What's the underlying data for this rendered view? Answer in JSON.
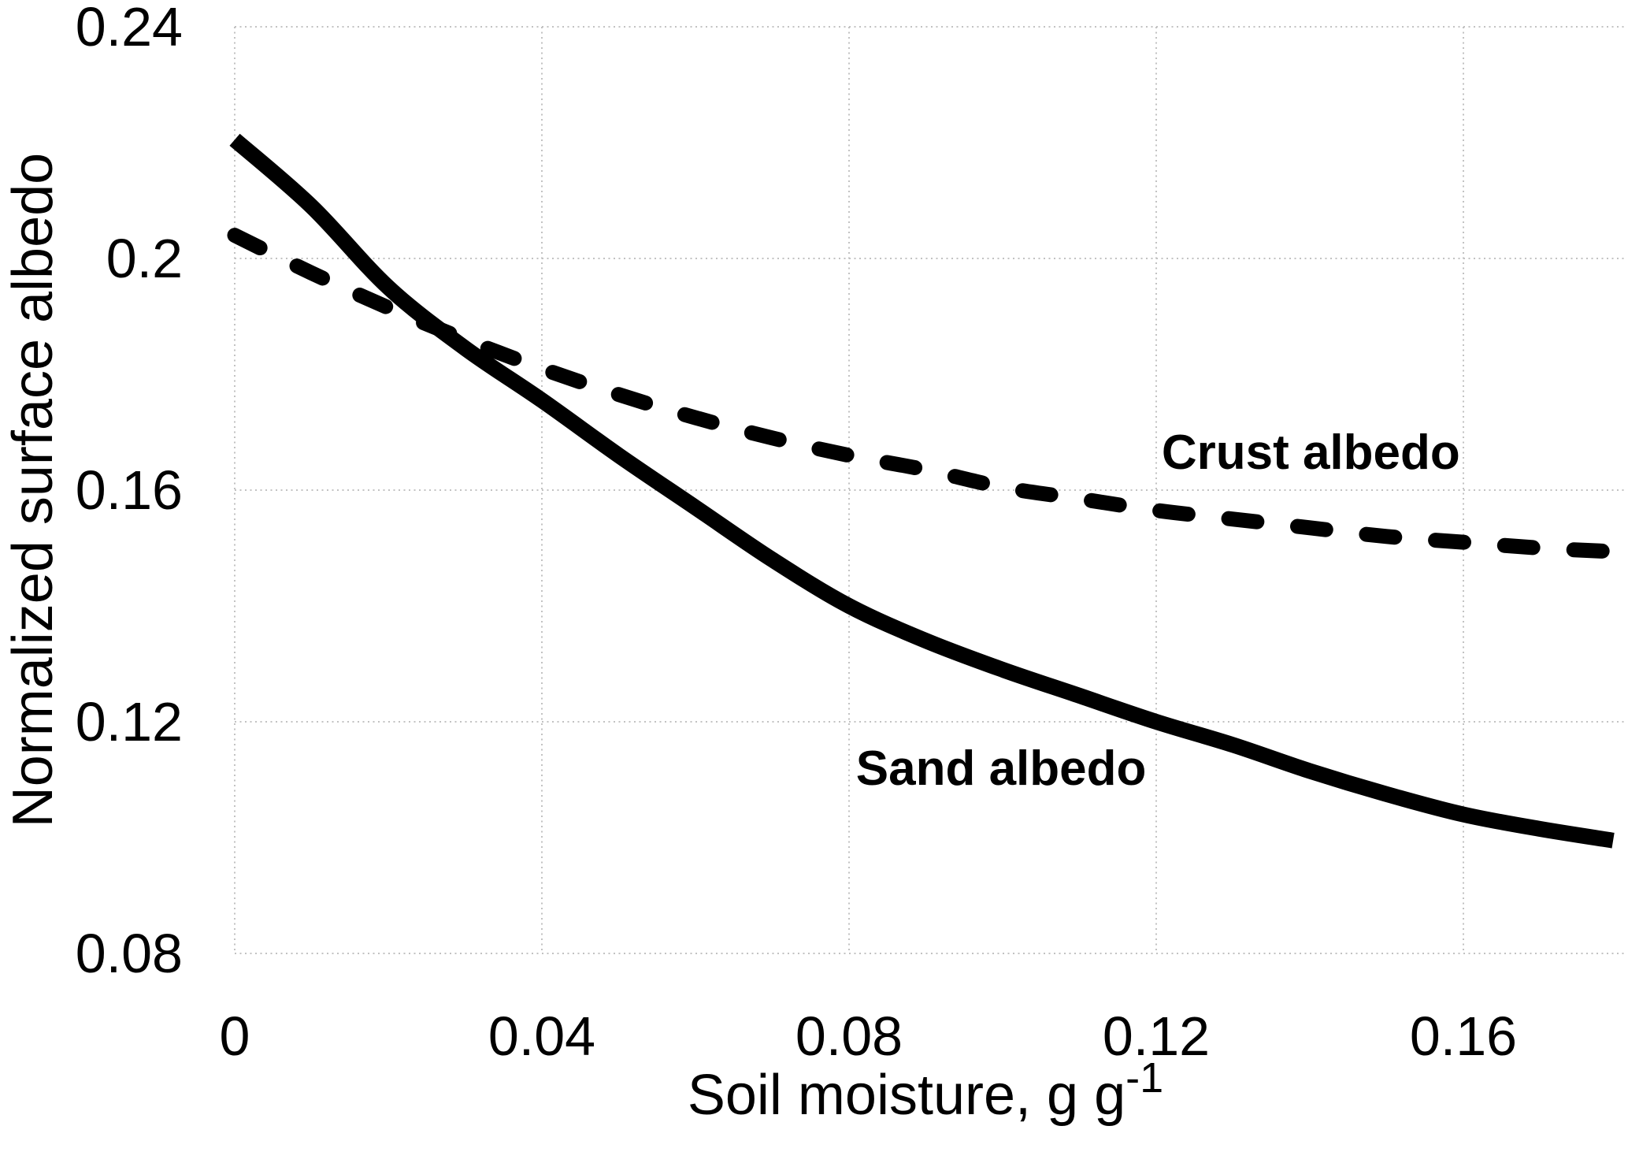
{
  "figure": {
    "background": "#ffffff"
  },
  "chart_data": {
    "type": "line",
    "title": "",
    "xlabel": "Soil moisture, g g",
    "xlabel_superscript": "-1",
    "ylabel": "Normalized surface albedo",
    "xlim": [
      0,
      0.18
    ],
    "ylim": [
      0.08,
      0.24
    ],
    "grid": true,
    "legend_position": "inline-annotations",
    "gridline_color": "#c2c2c2",
    "axis_text_color": "#000000",
    "x_ticks": {
      "values": [
        0,
        0.04,
        0.08,
        0.12,
        0.16
      ],
      "labels": [
        "0",
        "0.04",
        "0.08",
        "0.12",
        "0.16"
      ]
    },
    "y_ticks": {
      "values": [
        0.24,
        0.2,
        0.16,
        0.12,
        0.08
      ],
      "labels": [
        "0.24",
        "0.2",
        "0.16",
        "0.12",
        "0.08"
      ]
    },
    "series": [
      {
        "name": "Sand albedo",
        "style": "solid",
        "color": "#000000",
        "stroke_width": 20,
        "x": [
          0,
          0.01,
          0.02,
          0.03,
          0.04,
          0.05,
          0.06,
          0.07,
          0.08,
          0.09,
          0.1,
          0.11,
          0.12,
          0.13,
          0.14,
          0.15,
          0.16,
          0.17,
          0.1795
        ],
        "values": [
          0.2205,
          0.209,
          0.195,
          0.1845,
          0.1755,
          0.166,
          0.157,
          0.148,
          0.14,
          0.134,
          0.129,
          0.1245,
          0.12,
          0.116,
          0.1115,
          0.1075,
          0.104,
          0.1015,
          0.0995
        ]
      },
      {
        "name": "Crust albedo",
        "style": "dashed",
        "color": "#000000",
        "stroke_width": 19,
        "x": [
          0,
          0.01,
          0.02,
          0.03,
          0.04,
          0.05,
          0.06,
          0.07,
          0.08,
          0.09,
          0.1,
          0.11,
          0.12,
          0.13,
          0.14,
          0.15,
          0.16,
          0.17,
          0.181
        ],
        "values": [
          0.204,
          0.1975,
          0.1915,
          0.186,
          0.181,
          0.1765,
          0.1725,
          0.169,
          0.166,
          0.1635,
          0.1605,
          0.1585,
          0.1565,
          0.155,
          0.1535,
          0.152,
          0.151,
          0.15,
          0.1493
        ]
      }
    ],
    "annotations": [
      {
        "name": "crust-albedo-label",
        "text": "Crust albedo",
        "x": 0.1207,
        "y": 0.1664
      },
      {
        "name": "sand-albedo-label",
        "text": "Sand albedo",
        "x": 0.0809,
        "y": 0.1118
      }
    ]
  }
}
